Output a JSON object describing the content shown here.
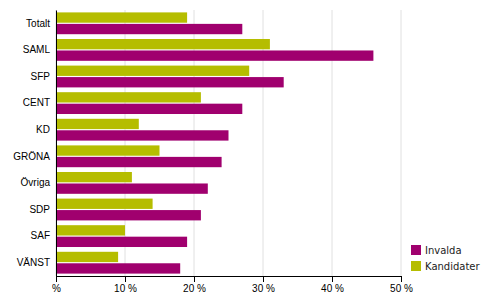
{
  "chart_data": {
    "type": "bar",
    "orientation": "horizontal",
    "categories": [
      "Totalt",
      "SAML",
      "SFP",
      "CENT",
      "KD",
      "GRÖNA",
      "Övriga",
      "SDP",
      "SAF",
      "VÄNST"
    ],
    "series": [
      {
        "name": "Invalda",
        "color": "#a0006e",
        "values": [
          27,
          46,
          33,
          27,
          25,
          24,
          22,
          21,
          19,
          18
        ]
      },
      {
        "name": "Kandidater",
        "color": "#b5bd00",
        "values": [
          19,
          31,
          28,
          21,
          12,
          15,
          11,
          14,
          10,
          9
        ]
      }
    ],
    "xlim": [
      0,
      50
    ],
    "xticks": [
      {
        "value": 0,
        "label": "%"
      },
      {
        "value": 10,
        "label": "10 %"
      },
      {
        "value": 20,
        "label": "20 %"
      },
      {
        "value": 30,
        "label": "30 %"
      },
      {
        "value": 40,
        "label": "40 %"
      },
      {
        "value": 50,
        "label": "50 %"
      }
    ],
    "grid": true,
    "legend": "lower right"
  }
}
